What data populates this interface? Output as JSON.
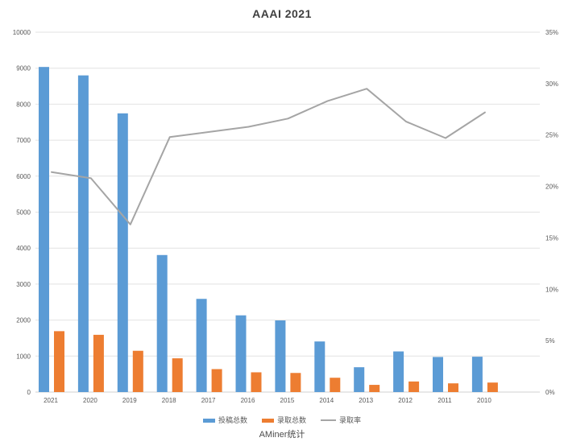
{
  "title": "AAAI 2021",
  "footer": "AMiner统计",
  "colors": {
    "submissions_bar": "#5b9bd5",
    "accepted_bar": "#ed7d31",
    "rate_line": "#a5a5a5",
    "axis_text": "#595959",
    "gridline": "#e2e2e2",
    "baseline": "#d2d2d2",
    "title_text": "#3f3f3f"
  },
  "chart_data": {
    "type": "bar",
    "subtype": "grouped-bars-with-line",
    "title": "AAAI 2021",
    "footer": "AMiner统计",
    "categories": [
      "2021",
      "2020",
      "2019",
      "2018",
      "2017",
      "2016",
      "2015",
      "2014",
      "2013",
      "2012",
      "2011",
      "2010"
    ],
    "series": [
      {
        "name": "投稿总数",
        "kind": "bar",
        "axis": "left",
        "color": "#5b9bd5",
        "values": [
          9034,
          8800,
          7745,
          3808,
          2590,
          2132,
          1991,
          1406,
          690,
          1129,
          975,
          982
        ]
      },
      {
        "name": "录取总数",
        "kind": "bar",
        "axis": "left",
        "color": "#ed7d31",
        "values": [
          1692,
          1591,
          1147,
          938,
          638,
          549,
          531,
          398,
          200,
          294,
          242,
          264
        ]
      },
      {
        "name": "录取率",
        "kind": "line",
        "axis": "right",
        "unit": "%",
        "color": "#a5a5a5",
        "values": [
          21.4,
          20.8,
          16.3,
          24.8,
          25.3,
          25.8,
          26.6,
          28.3,
          29.5,
          26.3,
          24.7,
          27.2
        ]
      }
    ],
    "left_axis": {
      "min": 0,
      "max": 10000,
      "step": 1000,
      "tick_labels": [
        "0",
        "1000",
        "2000",
        "3000",
        "4000",
        "5000",
        "6000",
        "7000",
        "8000",
        "9000",
        "10000"
      ]
    },
    "right_axis": {
      "min": 0,
      "max": 35,
      "step": 5,
      "tick_labels": [
        "0%",
        "5%",
        "10%",
        "15%",
        "20%",
        "25%",
        "30%",
        "35%"
      ]
    },
    "legend_position": "bottom",
    "grid": "horizontal"
  }
}
